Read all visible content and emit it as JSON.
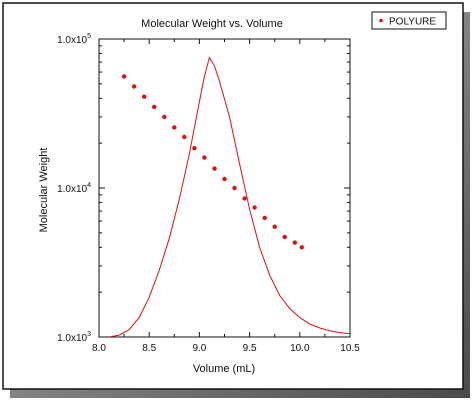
{
  "chart_data": {
    "type": "scatter",
    "title": "Molecular Weight vs. Volume",
    "xlabel": "Volume (mL)",
    "ylabel": "Molecular Weight",
    "xlim": [
      8.0,
      10.5
    ],
    "ylim": [
      1000,
      100000
    ],
    "y_scale": "log",
    "grid": false,
    "legend_position": "top-right",
    "x_ticks": [
      "8.0",
      "8.5",
      "9.0",
      "9.5",
      "10.0",
      "10.5"
    ],
    "y_ticks": [
      {
        "mantissa": "1.0x10",
        "exponent": "3",
        "value": 1000
      },
      {
        "mantissa": "1.0x10",
        "exponent": "4",
        "value": 10000
      },
      {
        "mantissa": "1.0x10",
        "exponent": "5",
        "value": 100000
      }
    ],
    "series": [
      {
        "name": "POLYURE",
        "kind": "points",
        "color": "#dd1111",
        "x": [
          8.25,
          8.35,
          8.45,
          8.55,
          8.65,
          8.75,
          8.85,
          8.95,
          9.05,
          9.15,
          9.25,
          9.35,
          9.45,
          9.55,
          9.65,
          9.75,
          9.85,
          9.95,
          10.02
        ],
        "y": [
          56000,
          48000,
          41000,
          35000,
          30000,
          25500,
          22000,
          18500,
          16000,
          13500,
          11500,
          10000,
          8500,
          7400,
          6300,
          5500,
          4700,
          4300,
          4000
        ]
      },
      {
        "kind": "line",
        "color": "#dd1111",
        "x": [
          8.1,
          8.2,
          8.3,
          8.4,
          8.5,
          8.6,
          8.7,
          8.8,
          8.9,
          9.0,
          9.05,
          9.1,
          9.15,
          9.2,
          9.3,
          9.4,
          9.5,
          9.6,
          9.7,
          9.8,
          9.9,
          10.0,
          10.1,
          10.2,
          10.3,
          10.4,
          10.5
        ],
        "y": [
          1000,
          1030,
          1120,
          1350,
          1850,
          2800,
          4600,
          8400,
          17000,
          38000,
          56000,
          75000,
          66000,
          52000,
          30000,
          14500,
          7200,
          4000,
          2600,
          1900,
          1550,
          1350,
          1220,
          1150,
          1100,
          1070,
          1050
        ]
      }
    ]
  }
}
